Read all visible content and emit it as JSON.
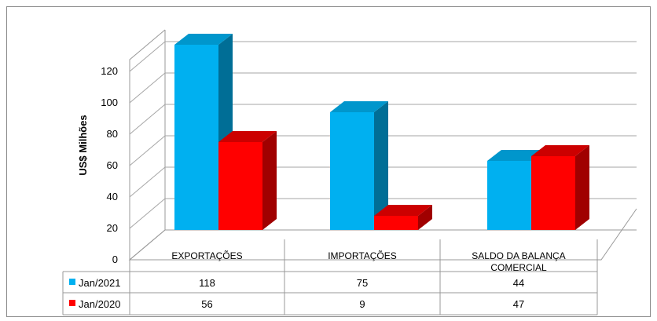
{
  "chart_data": {
    "type": "bar",
    "style": "3d-clustered-column-with-data-table",
    "ylabel": "US$ Milhões",
    "ylim": [
      0,
      120
    ],
    "yticks": [
      0,
      20,
      40,
      60,
      80,
      100,
      120
    ],
    "grid": true,
    "categories": [
      "EXPORTAÇÕES",
      "IMPORTAÇÕES",
      "SALDO DA BALANÇA COMERCIAL"
    ],
    "series": [
      {
        "name": "Jan/2021",
        "values": [
          118,
          75,
          44
        ],
        "color": "#00b0f0",
        "top_color": "#0096cc",
        "side_color": "#006e96"
      },
      {
        "name": "Jan/2020",
        "values": [
          56,
          9,
          47
        ],
        "color": "#ff0000",
        "top_color": "#cc0000",
        "side_color": "#a00000"
      }
    ]
  }
}
